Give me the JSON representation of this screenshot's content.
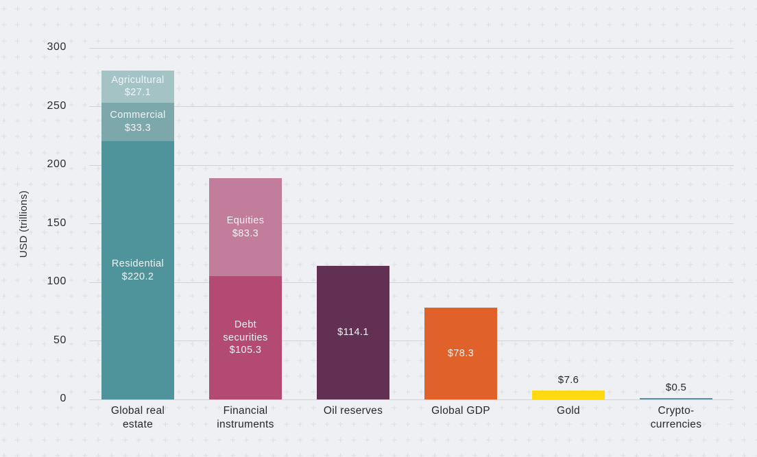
{
  "figure": {
    "background_color": "#eef0f4",
    "pattern_color": "#dce0e9",
    "gridline_color": "#cfd3d9",
    "axis_text_color": "#2b2b33",
    "bar_label_light_color": "#f3f4f6"
  },
  "chart_data": {
    "type": "bar",
    "stacked": true,
    "title": "",
    "xlabel": "",
    "ylabel": "USD (trillions)",
    "ylim": [
      0,
      300
    ],
    "yticks": [
      0,
      50,
      100,
      150,
      200,
      250,
      300
    ],
    "grid": "horizontal",
    "legend": "none",
    "categories": [
      "Global real estate",
      "Financial instruments",
      "Oil reserves",
      "Global GDP",
      "Gold",
      "Crypto-currencies"
    ],
    "category_display": [
      "Global real\nestate",
      "Financial\ninstruments",
      "Oil reserves",
      "Global GDP",
      "Gold",
      "Crypto-\ncurrencies"
    ],
    "segment_order": "bottom-to-top",
    "bars": [
      {
        "category": "Global real estate",
        "total": 280.6,
        "segments": [
          {
            "name": "Residential",
            "value": 220.2,
            "display": "Residential\n$220.2",
            "color": "#4f949b",
            "label_position": "inside"
          },
          {
            "name": "Commercial",
            "value": 33.3,
            "display": "Commercial\n$33.3",
            "color": "#7da8ab",
            "label_position": "inside"
          },
          {
            "name": "Agricultural",
            "value": 27.1,
            "display": "Agricultural\n$27.1",
            "color": "#a3c3c4",
            "label_position": "inside"
          }
        ]
      },
      {
        "category": "Financial instruments",
        "total": 188.6,
        "segments": [
          {
            "name": "Debt securities",
            "value": 105.3,
            "display": "Debt\nsecurities\n$105.3",
            "color": "#b34a73",
            "label_position": "inside"
          },
          {
            "name": "Equities",
            "value": 83.3,
            "display": "Equities\n$83.3",
            "color": "#c27c9c",
            "label_position": "inside"
          }
        ]
      },
      {
        "category": "Oil reserves",
        "total": 114.1,
        "segments": [
          {
            "name": "Oil reserves",
            "value": 114.1,
            "display": "$114.1",
            "color": "#613052",
            "label_position": "inside"
          }
        ]
      },
      {
        "category": "Global GDP",
        "total": 78.3,
        "segments": [
          {
            "name": "Global GDP",
            "value": 78.3,
            "display": "$78.3",
            "color": "#e0622a",
            "label_position": "inside"
          }
        ]
      },
      {
        "category": "Gold",
        "total": 7.6,
        "segments": [
          {
            "name": "Gold",
            "value": 7.6,
            "display": "$7.6",
            "color": "#fed912",
            "label_position": "above"
          }
        ]
      },
      {
        "category": "Crypto-currencies",
        "total": 0.5,
        "segments": [
          {
            "name": "Crypto-currencies",
            "value": 0.5,
            "display": "$0.5",
            "color": "#5c8da1",
            "label_position": "above"
          }
        ]
      }
    ]
  }
}
